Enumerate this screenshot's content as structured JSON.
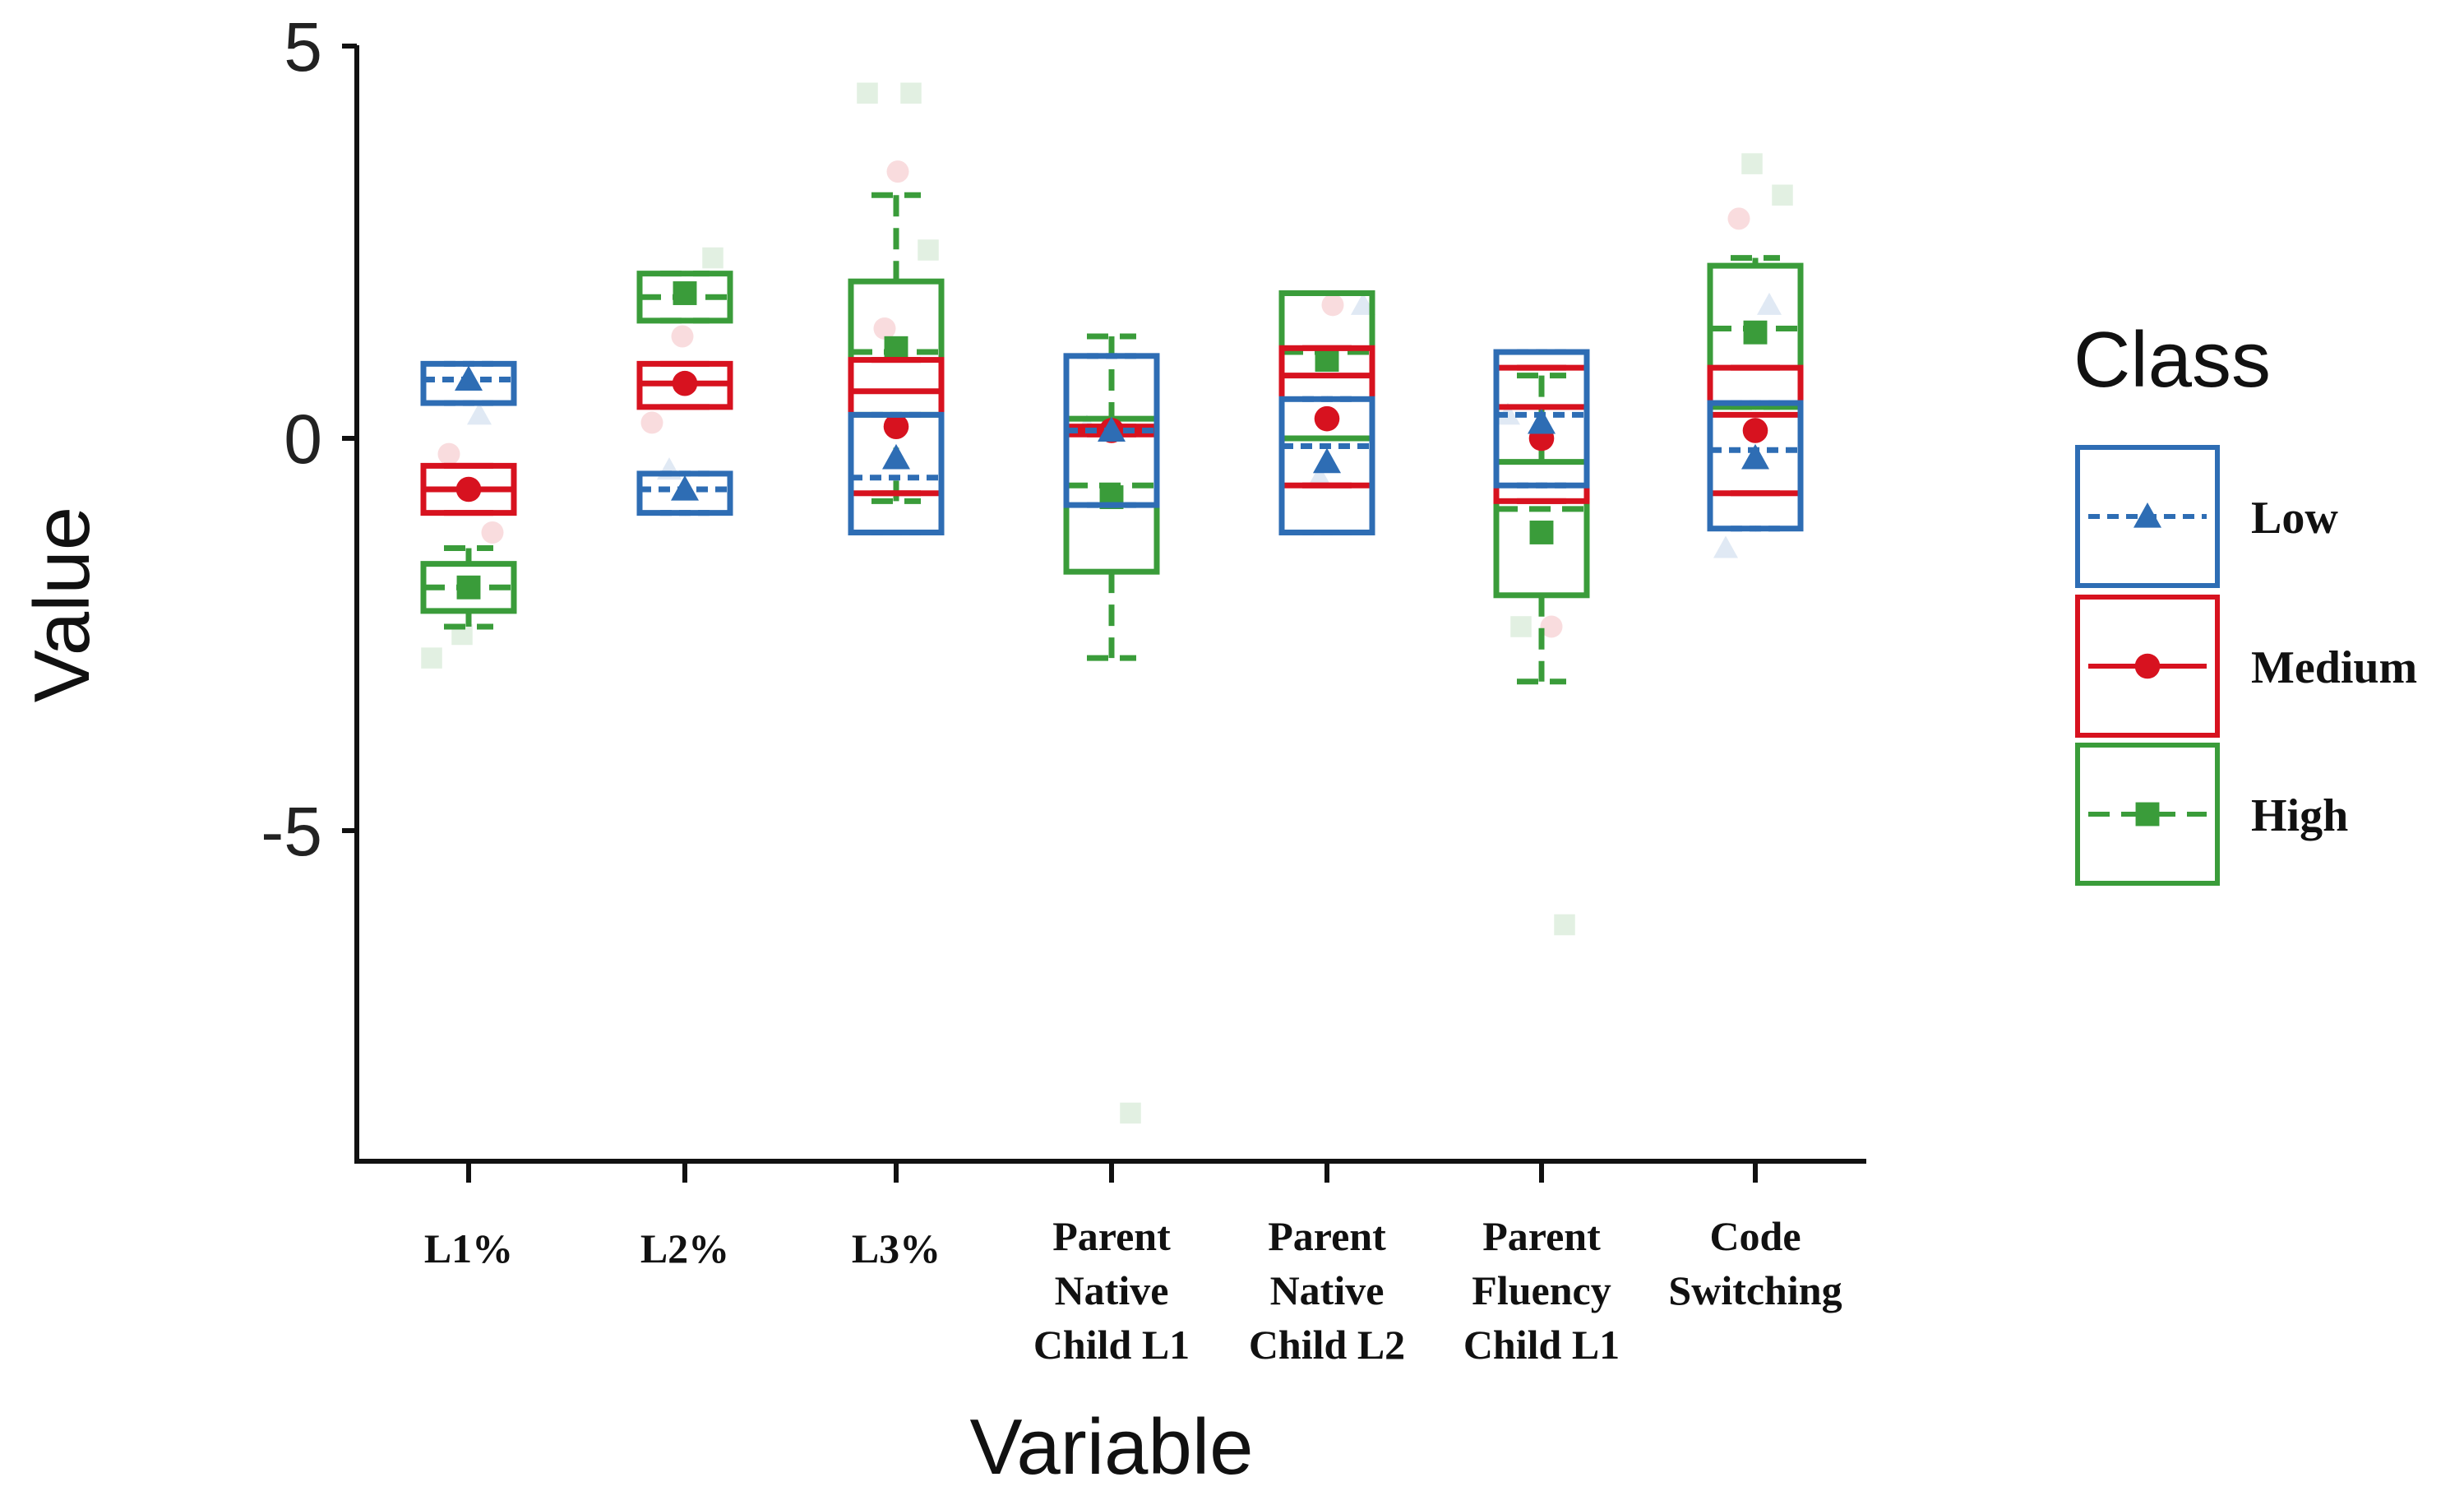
{
  "chart_data": {
    "type": "box",
    "title": "",
    "xlabel": "Variable",
    "ylabel": "Value",
    "ylim": [
      -9.2,
      5.2
    ],
    "yticks": [
      5,
      0,
      -5
    ],
    "ytick_labels": [
      "5",
      "0",
      "-5"
    ],
    "categories": [
      [
        "L1%"
      ],
      [
        "L2%"
      ],
      [
        "L3%"
      ],
      [
        "Parent",
        "Native",
        "Child L1"
      ],
      [
        "Parent",
        "Native",
        "Child L2"
      ],
      [
        "Parent",
        "Fluency",
        "Child L1"
      ],
      [
        "Code",
        "Switching"
      ]
    ],
    "legend": {
      "title": "Class",
      "position": "right"
    },
    "series": [
      {
        "name": "Low",
        "color": "#2e6db4",
        "marker": "triangle",
        "dash": "short",
        "boxes": [
          {
            "q1": 0.45,
            "median": 0.75,
            "q3": 0.95,
            "mean": 0.75,
            "whisker_low": 0.45,
            "whisker_high": 0.95
          },
          {
            "q1": -0.95,
            "median": -0.65,
            "q3": -0.45,
            "mean": -0.65,
            "whisker_low": -0.95,
            "whisker_high": -0.45
          },
          {
            "q1": -1.2,
            "median": -0.5,
            "q3": 0.3,
            "mean": -0.25,
            "whisker_low": -1.2,
            "whisker_high": 0.3
          },
          {
            "q1": -0.85,
            "median": 0.1,
            "q3": 1.05,
            "mean": 0.1,
            "whisker_low": -0.85,
            "whisker_high": 1.05
          },
          {
            "q1": -1.2,
            "median": -0.1,
            "q3": 0.5,
            "mean": -0.3,
            "whisker_low": -1.2,
            "whisker_high": 0.5
          },
          {
            "q1": -0.6,
            "median": 0.3,
            "q3": 1.1,
            "mean": 0.2,
            "whisker_low": -0.6,
            "whisker_high": 1.1
          },
          {
            "q1": -1.15,
            "median": -0.15,
            "q3": 0.45,
            "mean": -0.25,
            "whisker_low": -1.15,
            "whisker_high": 0.45
          }
        ]
      },
      {
        "name": "Medium",
        "color": "#d7121f",
        "marker": "circle",
        "dash": "solid",
        "boxes": [
          {
            "q1": -0.95,
            "median": -0.65,
            "q3": -0.35,
            "mean": -0.65,
            "whisker_low": -0.95,
            "whisker_high": -0.35
          },
          {
            "q1": 0.4,
            "median": 0.7,
            "q3": 0.95,
            "mean": 0.7,
            "whisker_low": 0.4,
            "whisker_high": 0.95
          },
          {
            "q1": -0.7,
            "median": 0.6,
            "q3": 1.0,
            "mean": 0.15,
            "whisker_low": -0.7,
            "whisker_high": 1.0
          },
          {
            "q1": 0.05,
            "median": 0.1,
            "q3": 0.15,
            "mean": 0.1,
            "whisker_low": 0.05,
            "whisker_high": 0.15
          },
          {
            "q1": -0.6,
            "median": 0.8,
            "q3": 1.15,
            "mean": 0.25,
            "whisker_low": -0.6,
            "whisker_high": 1.15
          },
          {
            "q1": -0.8,
            "median": 0.4,
            "q3": 0.9,
            "mean": 0.0,
            "whisker_low": -0.8,
            "whisker_high": 0.9
          },
          {
            "q1": -0.7,
            "median": 0.3,
            "q3": 0.9,
            "mean": 0.1,
            "whisker_low": -0.7,
            "whisker_high": 0.9
          }
        ]
      },
      {
        "name": "High",
        "color": "#3a9c3a",
        "marker": "square",
        "dash": "long",
        "boxes": [
          {
            "q1": -2.2,
            "median": -1.9,
            "q3": -1.6,
            "mean": -1.9,
            "whisker_low": -2.4,
            "whisker_high": -1.4
          },
          {
            "q1": 1.5,
            "median": 1.8,
            "q3": 2.1,
            "mean": 1.85,
            "whisker_low": 1.5,
            "whisker_high": 2.1
          },
          {
            "q1": 0.3,
            "median": 1.1,
            "q3": 2.0,
            "mean": 1.15,
            "whisker_low": -0.8,
            "whisker_high": 3.1
          },
          {
            "q1": -1.7,
            "median": -0.6,
            "q3": 0.25,
            "mean": -0.75,
            "whisker_low": -2.8,
            "whisker_high": 1.3
          },
          {
            "q1": 0.0,
            "median": 1.1,
            "q3": 1.85,
            "mean": 1.0,
            "whisker_low": 0.0,
            "whisker_high": 1.85
          },
          {
            "q1": -2.0,
            "median": -0.9,
            "q3": -0.3,
            "mean": -1.2,
            "whisker_low": -3.1,
            "whisker_high": 0.8
          },
          {
            "q1": 0.4,
            "median": 1.4,
            "q3": 2.2,
            "mean": 1.35,
            "whisker_low": 0.4,
            "whisker_high": 2.3
          }
        ]
      }
    ],
    "points": [
      {
        "series": "High",
        "cat": 0,
        "y": -2.8
      },
      {
        "series": "High",
        "cat": 0,
        "y": -2.5
      },
      {
        "series": "Medium",
        "cat": 0,
        "y": -1.2
      },
      {
        "series": "Medium",
        "cat": 0,
        "y": -0.2
      },
      {
        "series": "Low",
        "cat": 0,
        "y": 0.3
      },
      {
        "series": "Medium",
        "cat": 1,
        "y": 0.2
      },
      {
        "series": "Medium",
        "cat": 1,
        "y": 1.3
      },
      {
        "series": "High",
        "cat": 1,
        "y": 2.3
      },
      {
        "series": "Low",
        "cat": 1,
        "y": -0.4
      },
      {
        "series": "High",
        "cat": 2,
        "y": 4.4
      },
      {
        "series": "High",
        "cat": 2,
        "y": 4.4
      },
      {
        "series": "Medium",
        "cat": 2,
        "y": 3.4
      },
      {
        "series": "High",
        "cat": 2,
        "y": 2.4
      },
      {
        "series": "Medium",
        "cat": 2,
        "y": 1.4
      },
      {
        "series": "High",
        "cat": 3,
        "y": -8.6
      },
      {
        "series": "Low",
        "cat": 3,
        "y": 0.15
      },
      {
        "series": "Medium",
        "cat": 4,
        "y": 1.7
      },
      {
        "series": "Low",
        "cat": 4,
        "y": 1.7
      },
      {
        "series": "Low",
        "cat": 4,
        "y": -0.5
      },
      {
        "series": "High",
        "cat": 5,
        "y": -6.2
      },
      {
        "series": "High",
        "cat": 5,
        "y": -2.4
      },
      {
        "series": "Medium",
        "cat": 5,
        "y": -2.4
      },
      {
        "series": "Low",
        "cat": 5,
        "y": 0.3
      },
      {
        "series": "High",
        "cat": 6,
        "y": 3.5
      },
      {
        "series": "High",
        "cat": 6,
        "y": 3.1
      },
      {
        "series": "Medium",
        "cat": 6,
        "y": 2.8
      },
      {
        "series": "Low",
        "cat": 6,
        "y": 1.7
      },
      {
        "series": "Low",
        "cat": 6,
        "y": -1.4
      }
    ]
  }
}
